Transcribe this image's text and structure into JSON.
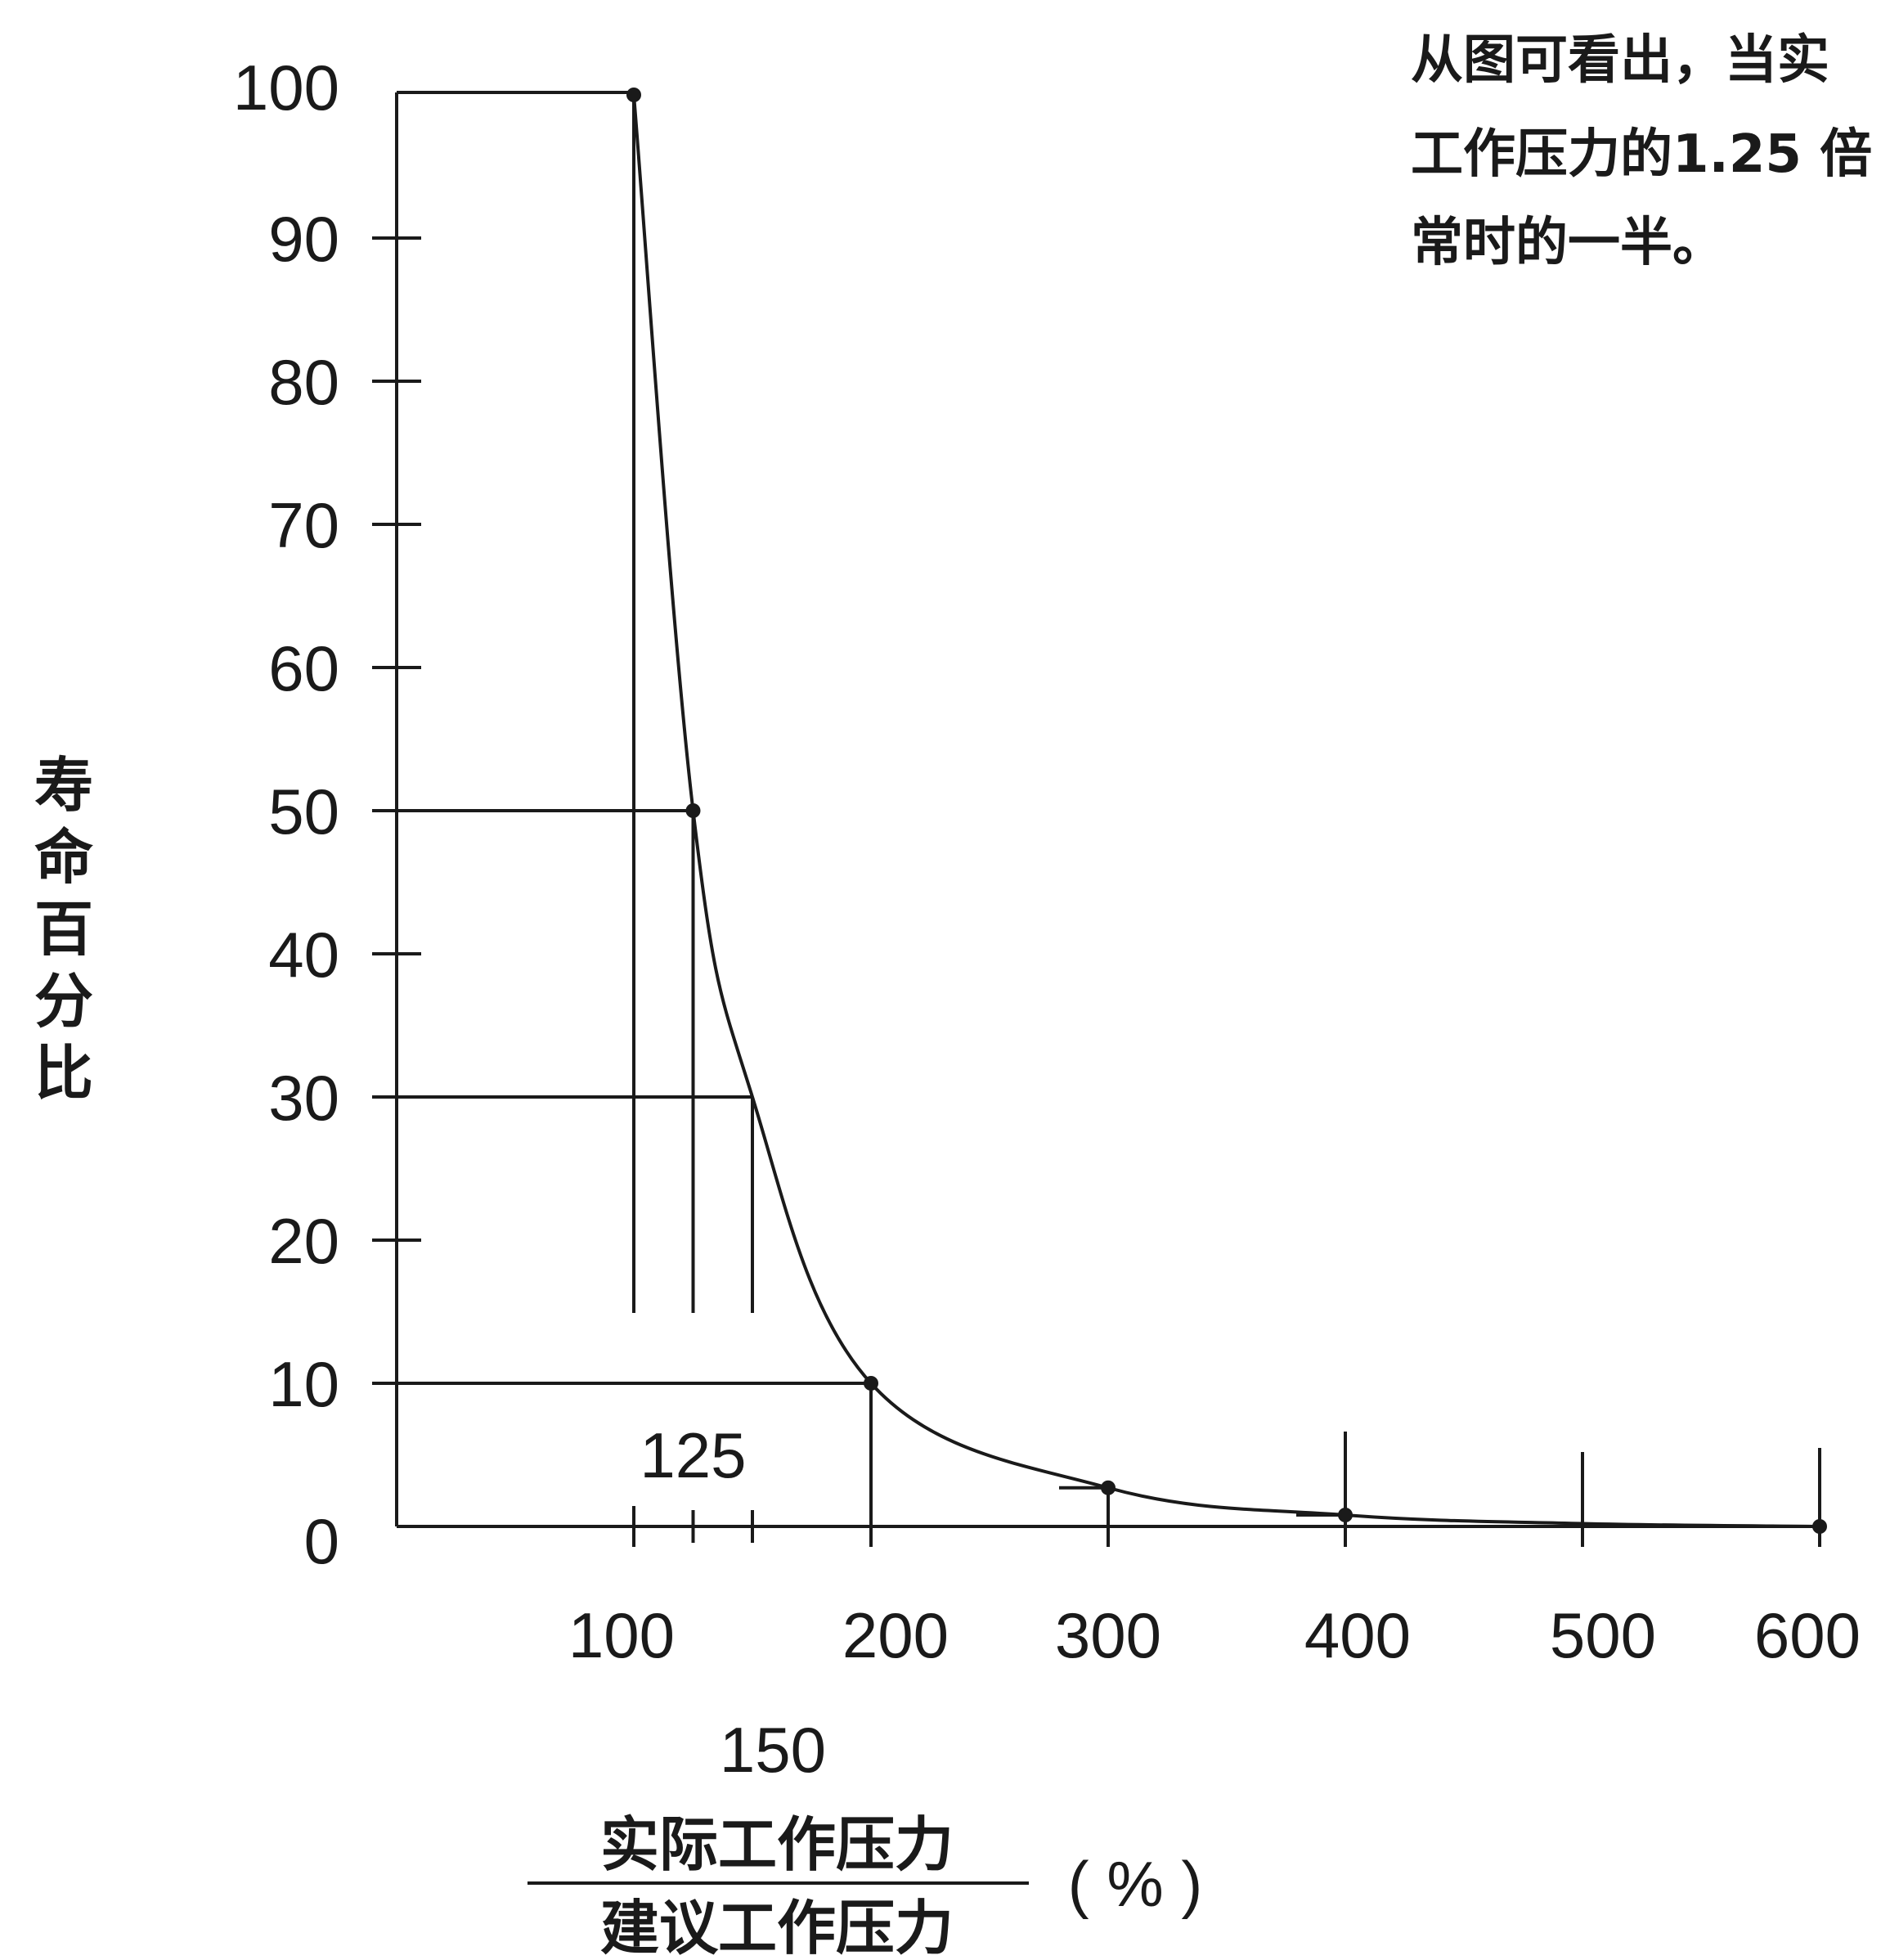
{
  "chart_data": {
    "type": "line",
    "ylabel": "寿命百分比",
    "xlabel_numerator": "实际工作压力",
    "xlabel_denominator": "建议工作压力",
    "xlabel_unit": "( % )",
    "note_lines": [
      "从图可看出，当实",
      "工作压力的1.25 倍",
      "常时的一半。"
    ],
    "y_ticks": [
      0,
      10,
      20,
      30,
      40,
      50,
      60,
      70,
      80,
      90,
      100
    ],
    "y_tick_labels": [
      "0",
      "10",
      "20",
      "30",
      "40",
      "50",
      "60",
      "70",
      "80",
      "90",
      "100"
    ],
    "x_ticks": [
      100,
      200,
      300,
      400,
      500,
      600
    ],
    "x_tick_labels": [
      "100",
      "200",
      "300",
      "400",
      "500",
      "600"
    ],
    "x_minor_labels": [
      {
        "value": 125,
        "text": "125"
      },
      {
        "value": 150,
        "text": "150"
      }
    ],
    "xlim": [
      0,
      600
    ],
    "ylim": [
      0,
      100
    ],
    "series": [
      {
        "x": [
          100,
          125,
          150,
          200,
          300,
          400,
          500,
          600
        ],
        "y": [
          100,
          50,
          30,
          10,
          2.7,
          0.8,
          0.2,
          0
        ]
      }
    ],
    "reference_lines": [
      {
        "x": 100,
        "y": 50
      },
      {
        "x": 125,
        "y": 50
      },
      {
        "x": 150,
        "y": 30
      },
      {
        "x": 200,
        "y": 10
      }
    ]
  }
}
